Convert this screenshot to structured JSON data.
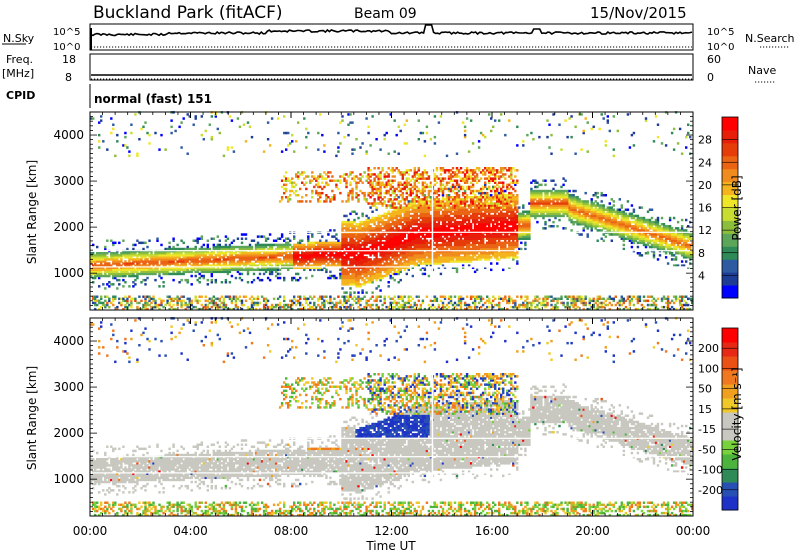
{
  "header": {
    "site": "Buckland Park (fitACF)",
    "beam": "Beam 09",
    "date": "15/Nov/2015"
  },
  "noise_panel": {
    "left_label": "N.Sky",
    "left_ticks": [
      "10^5",
      "10^0"
    ],
    "right_label": "N.Search",
    "right_ticks": [
      "10^5",
      "10^0"
    ]
  },
  "freq_panel": {
    "left_label_1": "Freq.",
    "left_label_2": "[MHz]",
    "left_ticks": [
      "18",
      "8"
    ],
    "right_label": "Nave",
    "right_ticks": [
      "60",
      "0"
    ]
  },
  "cpid": {
    "label": "CPID",
    "value": "normal (fast) 151"
  },
  "chart_data": [
    {
      "type": "heatmap",
      "name": "power",
      "ylabel": "Slant Range [km]",
      "ylim": [
        200,
        4500
      ],
      "yticks": [
        "4000",
        "3000",
        "2000",
        "1000"
      ],
      "xlim_hours": [
        0,
        24
      ],
      "colorbar": {
        "label": "Power [dB]",
        "ticks": [
          "28",
          "24",
          "20",
          "16",
          "12",
          "8",
          "4"
        ],
        "colors": [
          "#0000ff",
          "#1e3c96",
          "#2d5aa0",
          "#2e8b57",
          "#5ca65a",
          "#8cbe3c",
          "#c8dc32",
          "#f0e628",
          "#f5b41e",
          "#f08c1e",
          "#eb6414",
          "#e63c0a",
          "#e61e0a",
          "#ff0000"
        ]
      }
    },
    {
      "type": "heatmap",
      "name": "velocity",
      "ylabel": "Slant Range [km]",
      "ylim": [
        200,
        4500
      ],
      "yticks": [
        "4000",
        "3000",
        "2000",
        "1000"
      ],
      "xlim_hours": [
        0,
        24
      ],
      "xticks": [
        "00:00",
        "04:00",
        "08:00",
        "12:00",
        "16:00",
        "20:00",
        "00:00"
      ],
      "xlabel": "Time UT",
      "colorbar": {
        "label": "Velocity [m s⁻¹]",
        "ticks": [
          "200",
          "100",
          "50",
          "15",
          "-15",
          "-50",
          "-100",
          "-200"
        ],
        "colors": [
          "#1e32c8",
          "#2850b4",
          "#2e8b57",
          "#4cb43c",
          "#78d23c",
          "#c8c8c0",
          "#c8c8c0",
          "#f0c828",
          "#f0a01e",
          "#f0781e",
          "#eb5014",
          "#e62814",
          "#ff0000"
        ]
      }
    }
  ]
}
